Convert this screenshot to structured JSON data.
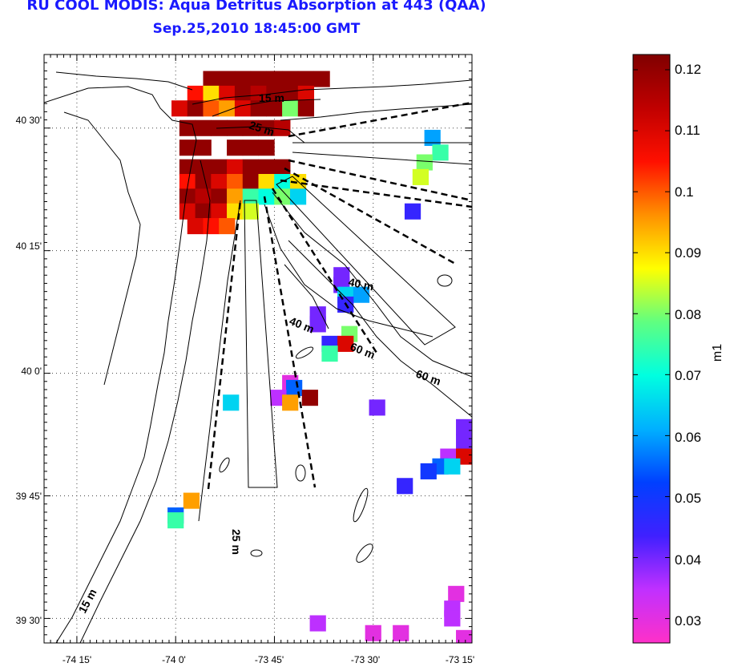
{
  "title_line1": "RU COOL MODIS: Aqua Detritus Absorption at 443 (QAA)",
  "title_line2": "Sep.25,2010 18:45:00 GMT",
  "x_ticks": [
    "-74 15'",
    "-74 0'",
    "-73 45'",
    "-73 30'",
    "-73 15'"
  ],
  "y_ticks": [
    "40 30'",
    "40 15'",
    "40 0'",
    "39 45'",
    "39 30'"
  ],
  "contour_labels": [
    "15 m",
    "25 m",
    "40 m",
    "40 m",
    "60 m",
    "60 m",
    "25 m",
    "15 m"
  ],
  "colorbar": {
    "label": "m1",
    "ticks": [
      "0.12",
      "0.11",
      "0.1",
      "0.09",
      "0.08",
      "0.07",
      "0.06",
      "0.05",
      "0.04",
      "0.03"
    ],
    "min": 0.026,
    "max": 0.1225,
    "colors": [
      "#ff30c8",
      "#c030ff",
      "#4020ff",
      "#0040ff",
      "#00b0ff",
      "#00ffe0",
      "#60ff80",
      "#ffff00",
      "#ff9000",
      "#ff1000",
      "#c00000",
      "#800000"
    ]
  },
  "chart_data": {
    "type": "heatmap",
    "variable": "m1",
    "x_range": [
      -74.333,
      -73.25
    ],
    "y_range": [
      39.45,
      40.65
    ],
    "pixels": [
      {
        "lon": -73.91,
        "lat": 40.6,
        "v": 0.12
      },
      {
        "lon": -73.87,
        "lat": 40.6,
        "v": 0.12
      },
      {
        "lon": -73.83,
        "lat": 40.6,
        "v": 0.12
      },
      {
        "lon": -73.79,
        "lat": 40.6,
        "v": 0.12
      },
      {
        "lon": -73.75,
        "lat": 40.6,
        "v": 0.12
      },
      {
        "lon": -73.71,
        "lat": 40.6,
        "v": 0.12
      },
      {
        "lon": -73.67,
        "lat": 40.6,
        "v": 0.12
      },
      {
        "lon": -73.63,
        "lat": 40.6,
        "v": 0.12
      },
      {
        "lon": -73.95,
        "lat": 40.57,
        "v": 0.105
      },
      {
        "lon": -73.91,
        "lat": 40.57,
        "v": 0.09
      },
      {
        "lon": -73.87,
        "lat": 40.57,
        "v": 0.11
      },
      {
        "lon": -73.83,
        "lat": 40.57,
        "v": 0.12
      },
      {
        "lon": -73.79,
        "lat": 40.57,
        "v": 0.115
      },
      {
        "lon": -73.75,
        "lat": 40.57,
        "v": 0.12
      },
      {
        "lon": -73.71,
        "lat": 40.57,
        "v": 0.12
      },
      {
        "lon": -73.67,
        "lat": 40.57,
        "v": 0.11
      },
      {
        "lon": -73.99,
        "lat": 40.54,
        "v": 0.11
      },
      {
        "lon": -73.95,
        "lat": 40.54,
        "v": 0.12
      },
      {
        "lon": -73.91,
        "lat": 40.54,
        "v": 0.1
      },
      {
        "lon": -73.87,
        "lat": 40.54,
        "v": 0.095
      },
      {
        "lon": -73.83,
        "lat": 40.54,
        "v": 0.11
      },
      {
        "lon": -73.79,
        "lat": 40.54,
        "v": 0.12
      },
      {
        "lon": -73.75,
        "lat": 40.54,
        "v": 0.12
      },
      {
        "lon": -73.71,
        "lat": 40.54,
        "v": 0.08
      },
      {
        "lon": -73.67,
        "lat": 40.54,
        "v": 0.12
      },
      {
        "lon": -73.97,
        "lat": 40.5,
        "v": 0.12
      },
      {
        "lon": -73.93,
        "lat": 40.5,
        "v": 0.12
      },
      {
        "lon": -73.89,
        "lat": 40.5,
        "v": 0.12
      },
      {
        "lon": -73.85,
        "lat": 40.5,
        "v": 0.12
      },
      {
        "lon": -73.81,
        "lat": 40.5,
        "v": 0.12
      },
      {
        "lon": -73.77,
        "lat": 40.5,
        "v": 0.12
      },
      {
        "lon": -73.73,
        "lat": 40.5,
        "v": 0.115
      },
      {
        "lon": -73.97,
        "lat": 40.46,
        "v": 0.12
      },
      {
        "lon": -73.93,
        "lat": 40.46,
        "v": 0.12
      },
      {
        "lon": -73.85,
        "lat": 40.46,
        "v": 0.12
      },
      {
        "lon": -73.81,
        "lat": 40.46,
        "v": 0.12
      },
      {
        "lon": -73.77,
        "lat": 40.46,
        "v": 0.12
      },
      {
        "lon": -73.97,
        "lat": 40.42,
        "v": 0.12
      },
      {
        "lon": -73.93,
        "lat": 40.42,
        "v": 0.12
      },
      {
        "lon": -73.89,
        "lat": 40.42,
        "v": 0.12
      },
      {
        "lon": -73.85,
        "lat": 40.42,
        "v": 0.11
      },
      {
        "lon": -73.81,
        "lat": 40.42,
        "v": 0.12
      },
      {
        "lon": -73.77,
        "lat": 40.42,
        "v": 0.12
      },
      {
        "lon": -73.73,
        "lat": 40.42,
        "v": 0.12
      },
      {
        "lon": -73.97,
        "lat": 40.39,
        "v": 0.105
      },
      {
        "lon": -73.93,
        "lat": 40.39,
        "v": 0.12
      },
      {
        "lon": -73.89,
        "lat": 40.39,
        "v": 0.11
      },
      {
        "lon": -73.85,
        "lat": 40.39,
        "v": 0.1
      },
      {
        "lon": -73.81,
        "lat": 40.39,
        "v": 0.12
      },
      {
        "lon": -73.77,
        "lat": 40.39,
        "v": 0.09
      },
      {
        "lon": -73.73,
        "lat": 40.39,
        "v": 0.07
      },
      {
        "lon": -73.69,
        "lat": 40.39,
        "v": 0.09
      },
      {
        "lon": -73.97,
        "lat": 40.36,
        "v": 0.12
      },
      {
        "lon": -73.93,
        "lat": 40.36,
        "v": 0.115
      },
      {
        "lon": -73.89,
        "lat": 40.36,
        "v": 0.12
      },
      {
        "lon": -73.85,
        "lat": 40.36,
        "v": 0.095
      },
      {
        "lon": -73.81,
        "lat": 40.36,
        "v": 0.075
      },
      {
        "lon": -73.77,
        "lat": 40.36,
        "v": 0.07
      },
      {
        "lon": -73.73,
        "lat": 40.36,
        "v": 0.08
      },
      {
        "lon": -73.69,
        "lat": 40.36,
        "v": 0.065
      },
      {
        "lon": -73.97,
        "lat": 40.33,
        "v": 0.11
      },
      {
        "lon": -73.93,
        "lat": 40.33,
        "v": 0.12
      },
      {
        "lon": -73.89,
        "lat": 40.33,
        "v": 0.11
      },
      {
        "lon": -73.85,
        "lat": 40.33,
        "v": 0.09
      },
      {
        "lon": -73.81,
        "lat": 40.33,
        "v": 0.085
      },
      {
        "lon": -73.95,
        "lat": 40.3,
        "v": 0.11
      },
      {
        "lon": -73.91,
        "lat": 40.3,
        "v": 0.105
      },
      {
        "lon": -73.87,
        "lat": 40.3,
        "v": 0.1
      },
      {
        "lon": -73.35,
        "lat": 40.48,
        "v": 0.06
      },
      {
        "lon": -73.33,
        "lat": 40.45,
        "v": 0.075
      },
      {
        "lon": -73.37,
        "lat": 40.43,
        "v": 0.08
      },
      {
        "lon": -73.38,
        "lat": 40.4,
        "v": 0.085
      },
      {
        "lon": -73.4,
        "lat": 40.33,
        "v": 0.045
      },
      {
        "lon": -73.58,
        "lat": 40.2,
        "v": 0.04
      },
      {
        "lon": -73.58,
        "lat": 40.18,
        "v": 0.04
      },
      {
        "lon": -73.57,
        "lat": 40.16,
        "v": 0.065
      },
      {
        "lon": -73.53,
        "lat": 40.16,
        "v": 0.06
      },
      {
        "lon": -73.57,
        "lat": 40.14,
        "v": 0.045
      },
      {
        "lon": -73.64,
        "lat": 40.12,
        "v": 0.04
      },
      {
        "lon": -73.64,
        "lat": 40.1,
        "v": 0.04
      },
      {
        "lon": -73.56,
        "lat": 40.08,
        "v": 0.08
      },
      {
        "lon": -73.61,
        "lat": 40.06,
        "v": 0.045
      },
      {
        "lon": -73.57,
        "lat": 40.06,
        "v": 0.11
      },
      {
        "lon": -73.61,
        "lat": 40.04,
        "v": 0.075
      },
      {
        "lon": -73.71,
        "lat": 39.98,
        "v": 0.03
      },
      {
        "lon": -73.7,
        "lat": 39.97,
        "v": 0.055
      },
      {
        "lon": -73.66,
        "lat": 39.95,
        "v": 0.12
      },
      {
        "lon": -73.74,
        "lat": 39.95,
        "v": 0.035
      },
      {
        "lon": -73.71,
        "lat": 39.94,
        "v": 0.095
      },
      {
        "lon": -73.86,
        "lat": 39.94,
        "v": 0.065
      },
      {
        "lon": -73.49,
        "lat": 39.93,
        "v": 0.04
      },
      {
        "lon": -73.27,
        "lat": 39.89,
        "v": 0.04
      },
      {
        "lon": -73.27,
        "lat": 39.86,
        "v": 0.04
      },
      {
        "lon": -73.31,
        "lat": 39.83,
        "v": 0.035
      },
      {
        "lon": -73.27,
        "lat": 39.83,
        "v": 0.11
      },
      {
        "lon": -73.33,
        "lat": 39.81,
        "v": 0.055
      },
      {
        "lon": -73.3,
        "lat": 39.81,
        "v": 0.065
      },
      {
        "lon": -73.36,
        "lat": 39.8,
        "v": 0.05
      },
      {
        "lon": -73.42,
        "lat": 39.77,
        "v": 0.045
      },
      {
        "lon": -73.96,
        "lat": 39.74,
        "v": 0.095
      },
      {
        "lon": -74.0,
        "lat": 39.71,
        "v": 0.055
      },
      {
        "lon": -74.0,
        "lat": 39.7,
        "v": 0.075
      },
      {
        "lon": -73.29,
        "lat": 39.55,
        "v": 0.03
      },
      {
        "lon": -73.3,
        "lat": 39.52,
        "v": 0.035
      },
      {
        "lon": -73.3,
        "lat": 39.5,
        "v": 0.035
      },
      {
        "lon": -73.64,
        "lat": 39.49,
        "v": 0.035
      },
      {
        "lon": -73.5,
        "lat": 39.47,
        "v": 0.03
      },
      {
        "lon": -73.43,
        "lat": 39.47,
        "v": 0.03
      },
      {
        "lon": -73.27,
        "lat": 39.46,
        "v": 0.03
      }
    ]
  }
}
